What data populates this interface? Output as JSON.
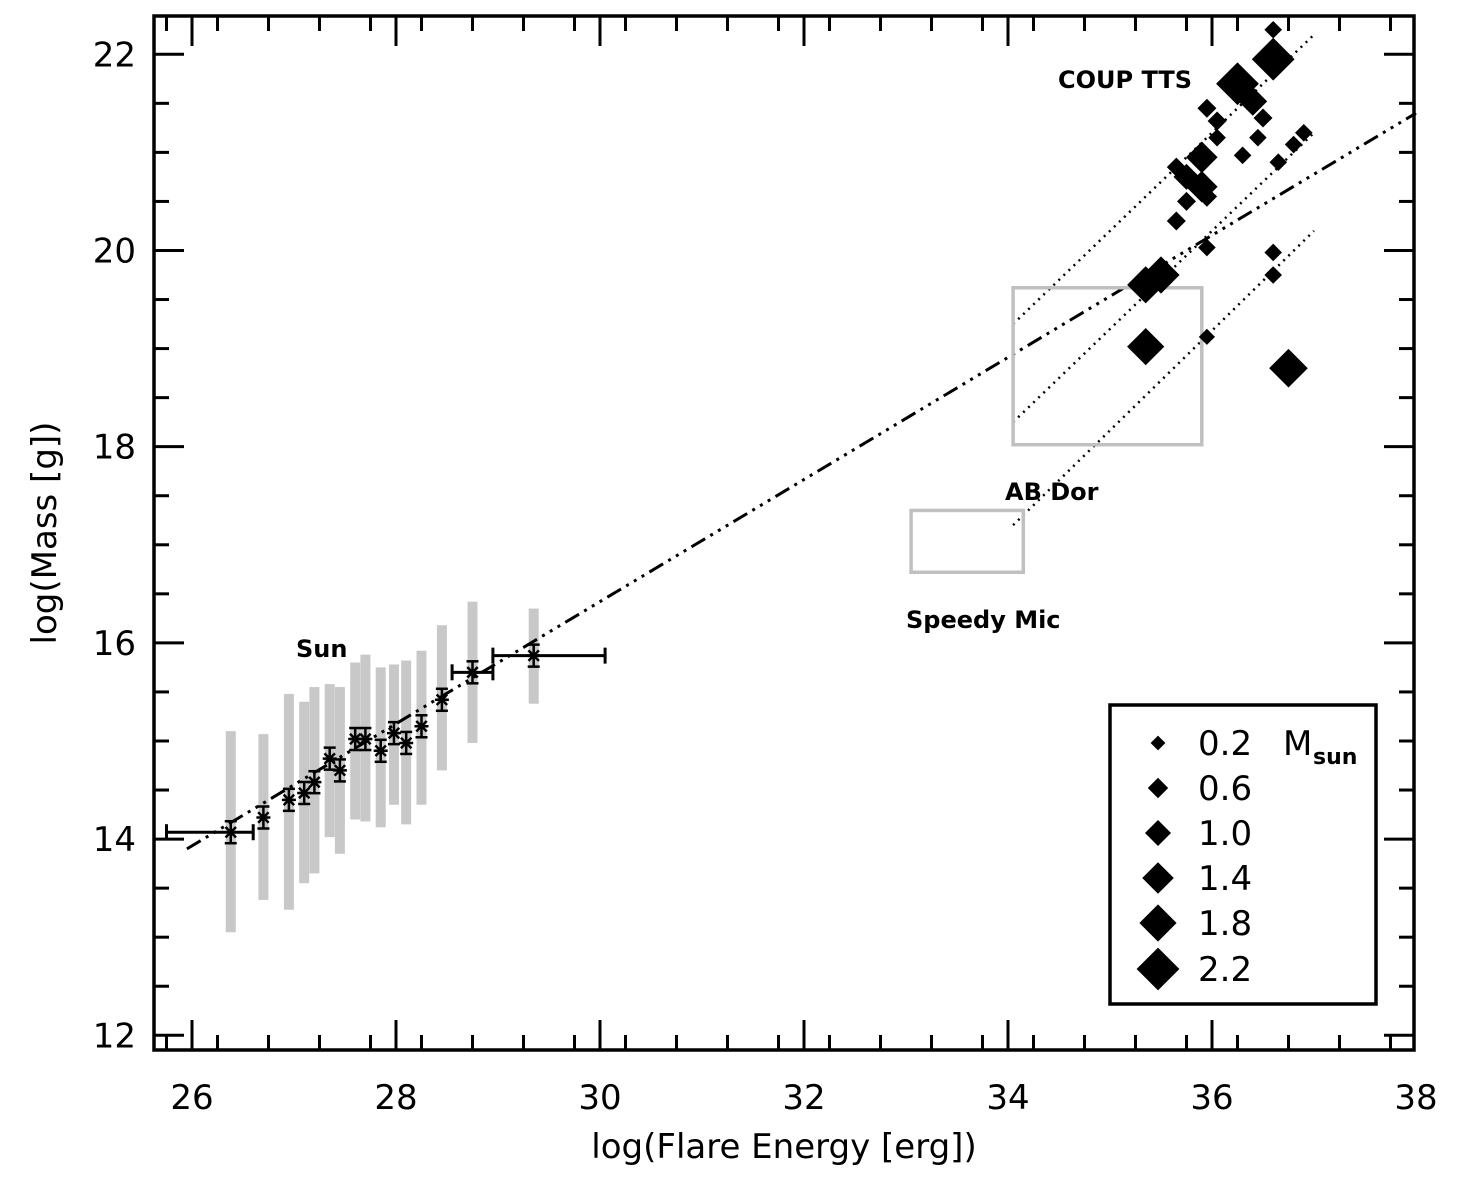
{
  "chart_data": {
    "type": "scatter",
    "title": "",
    "xlabel": "log(Flare Energy [erg])",
    "ylabel": "log(Mass [g])",
    "xlim": [
      25.6,
      38
    ],
    "ylim": [
      11.8,
      22.5
    ],
    "x_ticks": [
      26,
      28,
      30,
      32,
      34,
      36,
      38
    ],
    "y_ticks": [
      12,
      14,
      16,
      18,
      20,
      22
    ],
    "x_tick_labels": [
      "26",
      "28",
      "30",
      "32",
      "34",
      "36",
      "38"
    ],
    "y_tick_labels": [
      "12",
      "14",
      "16",
      "18",
      "20",
      "22"
    ],
    "grid": false,
    "legend_position": "bottom-right",
    "annotations": {
      "sun": "Sun",
      "coup": "COUP TTS",
      "ab_dor": "AB Dor",
      "speedy": "Speedy Mic"
    },
    "legend": {
      "unit_main": "M",
      "unit_sub": "sun",
      "entries": [
        {
          "label": "0.2",
          "mass": 0.2
        },
        {
          "label": "0.6",
          "mass": 0.6
        },
        {
          "label": "1.0",
          "mass": 1.0
        },
        {
          "label": "1.4",
          "mass": 1.4
        },
        {
          "label": "1.8",
          "mass": 1.8
        },
        {
          "label": "2.2",
          "mass": 2.2
        }
      ]
    },
    "solar_points": [
      {
        "x": 26.38,
        "y": 14.07,
        "xerr": [
          25.75,
          26.6
        ],
        "range": [
          13.05,
          15.1
        ]
      },
      {
        "x": 26.7,
        "y": 14.22,
        "range": [
          13.38,
          15.07
        ]
      },
      {
        "x": 26.95,
        "y": 14.4,
        "range": [
          13.28,
          15.48
        ]
      },
      {
        "x": 27.1,
        "y": 14.47,
        "range": [
          13.55,
          15.4
        ]
      },
      {
        "x": 27.2,
        "y": 14.58,
        "range": [
          13.65,
          15.55
        ]
      },
      {
        "x": 27.35,
        "y": 14.82,
        "range": [
          14.02,
          15.58
        ]
      },
      {
        "x": 27.45,
        "y": 14.7,
        "range": [
          13.85,
          15.55
        ]
      },
      {
        "x": 27.6,
        "y": 15.02,
        "range": [
          14.2,
          15.8
        ]
      },
      {
        "x": 27.7,
        "y": 15.02,
        "range": [
          14.18,
          15.88
        ]
      },
      {
        "x": 27.85,
        "y": 14.9,
        "range": [
          14.12,
          15.75
        ]
      },
      {
        "x": 27.98,
        "y": 15.08,
        "range": [
          14.35,
          15.78
        ]
      },
      {
        "x": 28.1,
        "y": 14.98,
        "range": [
          14.15,
          15.82
        ]
      },
      {
        "x": 28.25,
        "y": 15.15,
        "range": [
          14.35,
          15.92
        ]
      },
      {
        "x": 28.45,
        "y": 15.42,
        "range": [
          14.7,
          16.18
        ]
      },
      {
        "x": 28.75,
        "y": 15.7,
        "xerr": [
          28.55,
          28.95
        ],
        "range": [
          14.98,
          16.42
        ]
      },
      {
        "x": 29.35,
        "y": 15.87,
        "xerr": [
          28.95,
          30.05
        ],
        "range": [
          15.38,
          16.35
        ]
      }
    ],
    "solar_fit": {
      "x0": 25.95,
      "y0": 13.9,
      "x1": 38,
      "y1": 21.4
    },
    "coup_lines": [
      {
        "x0": 34.05,
        "y0": 19.25,
        "x1": 37.0,
        "y1": 22.2
      },
      {
        "x0": 34.05,
        "y0": 18.25,
        "x1": 37.0,
        "y1": 21.2
      },
      {
        "x0": 34.05,
        "y0": 17.2,
        "x1": 37.0,
        "y1": 20.2
      }
    ],
    "boxes": [
      {
        "name": "AB Dor",
        "x0": 34.05,
        "x1": 35.9,
        "y0": 18.02,
        "y1": 19.62
      },
      {
        "name": "Speedy Mic",
        "x0": 33.05,
        "x1": 34.15,
        "y0": 16.72,
        "y1": 17.35
      }
    ],
    "coup_stars": [
      {
        "x": 36.6,
        "y": 22.25,
        "mass": 0.4
      },
      {
        "x": 36.6,
        "y": 21.95,
        "mass": 2.2
      },
      {
        "x": 36.25,
        "y": 21.7,
        "mass": 2.2
      },
      {
        "x": 36.4,
        "y": 21.52,
        "mass": 1.2
      },
      {
        "x": 35.95,
        "y": 21.45,
        "mass": 0.5
      },
      {
        "x": 36.05,
        "y": 21.32,
        "mass": 0.5
      },
      {
        "x": 36.5,
        "y": 21.35,
        "mass": 0.5
      },
      {
        "x": 36.05,
        "y": 21.15,
        "mass": 0.4
      },
      {
        "x": 36.45,
        "y": 21.15,
        "mass": 0.4
      },
      {
        "x": 36.9,
        "y": 21.2,
        "mass": 0.4
      },
      {
        "x": 36.8,
        "y": 21.08,
        "mass": 0.4
      },
      {
        "x": 35.9,
        "y": 20.95,
        "mass": 1.4
      },
      {
        "x": 36.3,
        "y": 20.97,
        "mass": 0.4
      },
      {
        "x": 36.65,
        "y": 20.9,
        "mass": 0.4
      },
      {
        "x": 35.65,
        "y": 20.85,
        "mass": 0.5
      },
      {
        "x": 35.75,
        "y": 20.75,
        "mass": 1.0
      },
      {
        "x": 35.9,
        "y": 20.65,
        "mass": 1.4
      },
      {
        "x": 35.95,
        "y": 20.55,
        "mass": 0.6
      },
      {
        "x": 35.75,
        "y": 20.5,
        "mass": 0.5
      },
      {
        "x": 35.65,
        "y": 20.3,
        "mass": 0.5
      },
      {
        "x": 35.95,
        "y": 20.03,
        "mass": 0.4
      },
      {
        "x": 36.6,
        "y": 19.98,
        "mass": 0.4
      },
      {
        "x": 36.6,
        "y": 19.75,
        "mass": 0.4
      },
      {
        "x": 35.5,
        "y": 19.75,
        "mass": 1.8
      },
      {
        "x": 35.35,
        "y": 19.65,
        "mass": 1.8
      },
      {
        "x": 35.95,
        "y": 19.12,
        "mass": 0.3
      },
      {
        "x": 35.35,
        "y": 19.02,
        "mass": 1.8
      },
      {
        "x": 36.75,
        "y": 18.8,
        "mass": 1.9
      }
    ]
  }
}
